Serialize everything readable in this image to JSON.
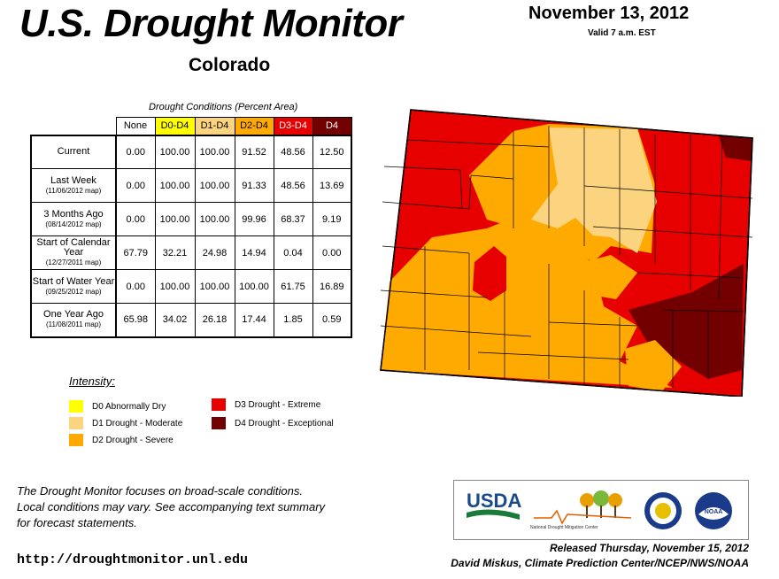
{
  "header": {
    "title": "U.S. Drought Monitor",
    "region": "Colorado",
    "date": "November 13, 2012",
    "valid": "Valid 7 a.m. EST"
  },
  "table": {
    "caption": "Drought Conditions (Percent Area)",
    "columns": [
      "None",
      "D0-D4",
      "D1-D4",
      "D2-D4",
      "D3-D4",
      "D4"
    ],
    "rows": [
      {
        "label": "Current",
        "sub": "",
        "values": [
          "0.00",
          "100.00",
          "100.00",
          "91.52",
          "48.56",
          "12.50"
        ]
      },
      {
        "label": "Last Week",
        "sub": "(11/06/2012 map)",
        "values": [
          "0.00",
          "100.00",
          "100.00",
          "91.33",
          "48.56",
          "13.69"
        ]
      },
      {
        "label": "3 Months Ago",
        "sub": "(08/14/2012 map)",
        "values": [
          "0.00",
          "100.00",
          "100.00",
          "99.96",
          "68.37",
          "9.19"
        ]
      },
      {
        "label": "Start of Calendar Year",
        "sub": "(12/27/2011 map)",
        "values": [
          "67.79",
          "32.21",
          "24.98",
          "14.94",
          "0.04",
          "0.00"
        ]
      },
      {
        "label": "Start of Water Year",
        "sub": "(09/25/2012 map)",
        "values": [
          "0.00",
          "100.00",
          "100.00",
          "100.00",
          "61.75",
          "16.89"
        ]
      },
      {
        "label": "One Year Ago",
        "sub": "(11/08/2011 map)",
        "values": [
          "65.98",
          "34.02",
          "26.18",
          "17.44",
          "1.85",
          "0.59"
        ]
      }
    ]
  },
  "legend": {
    "title": "Intensity:",
    "items": [
      {
        "label": "D0 Abnormally Dry",
        "color": "#ffff00"
      },
      {
        "label": "D1 Drought - Moderate",
        "color": "#fcd37f"
      },
      {
        "label": "D2 Drought - Severe",
        "color": "#ffaa00"
      },
      {
        "label": "D3 Drought - Extreme",
        "color": "#e60000"
      },
      {
        "label": "D4 Drought - Exceptional",
        "color": "#730000"
      }
    ]
  },
  "footer": {
    "disclaimer_1": "The Drought Monitor focuses on broad-scale conditions.",
    "disclaimer_2": "Local conditions may vary. See accompanying text summary",
    "disclaimer_3": "for forecast statements.",
    "url": "http://droughtmonitor.unl.edu",
    "released": "Released Thursday, November 15, 2012",
    "author": "David Miskus, Climate Prediction Center/NCEP/NWS/NOAA"
  },
  "logos": {
    "usda": "USDA",
    "ndmc": "National Drought Mitigation Center",
    "doc": "department-of-commerce-seal",
    "noaa": "NOAA"
  },
  "colors": {
    "d0": "#ffff00",
    "d1": "#fcd37f",
    "d2": "#ffaa00",
    "d3": "#e60000",
    "d4": "#730000"
  }
}
